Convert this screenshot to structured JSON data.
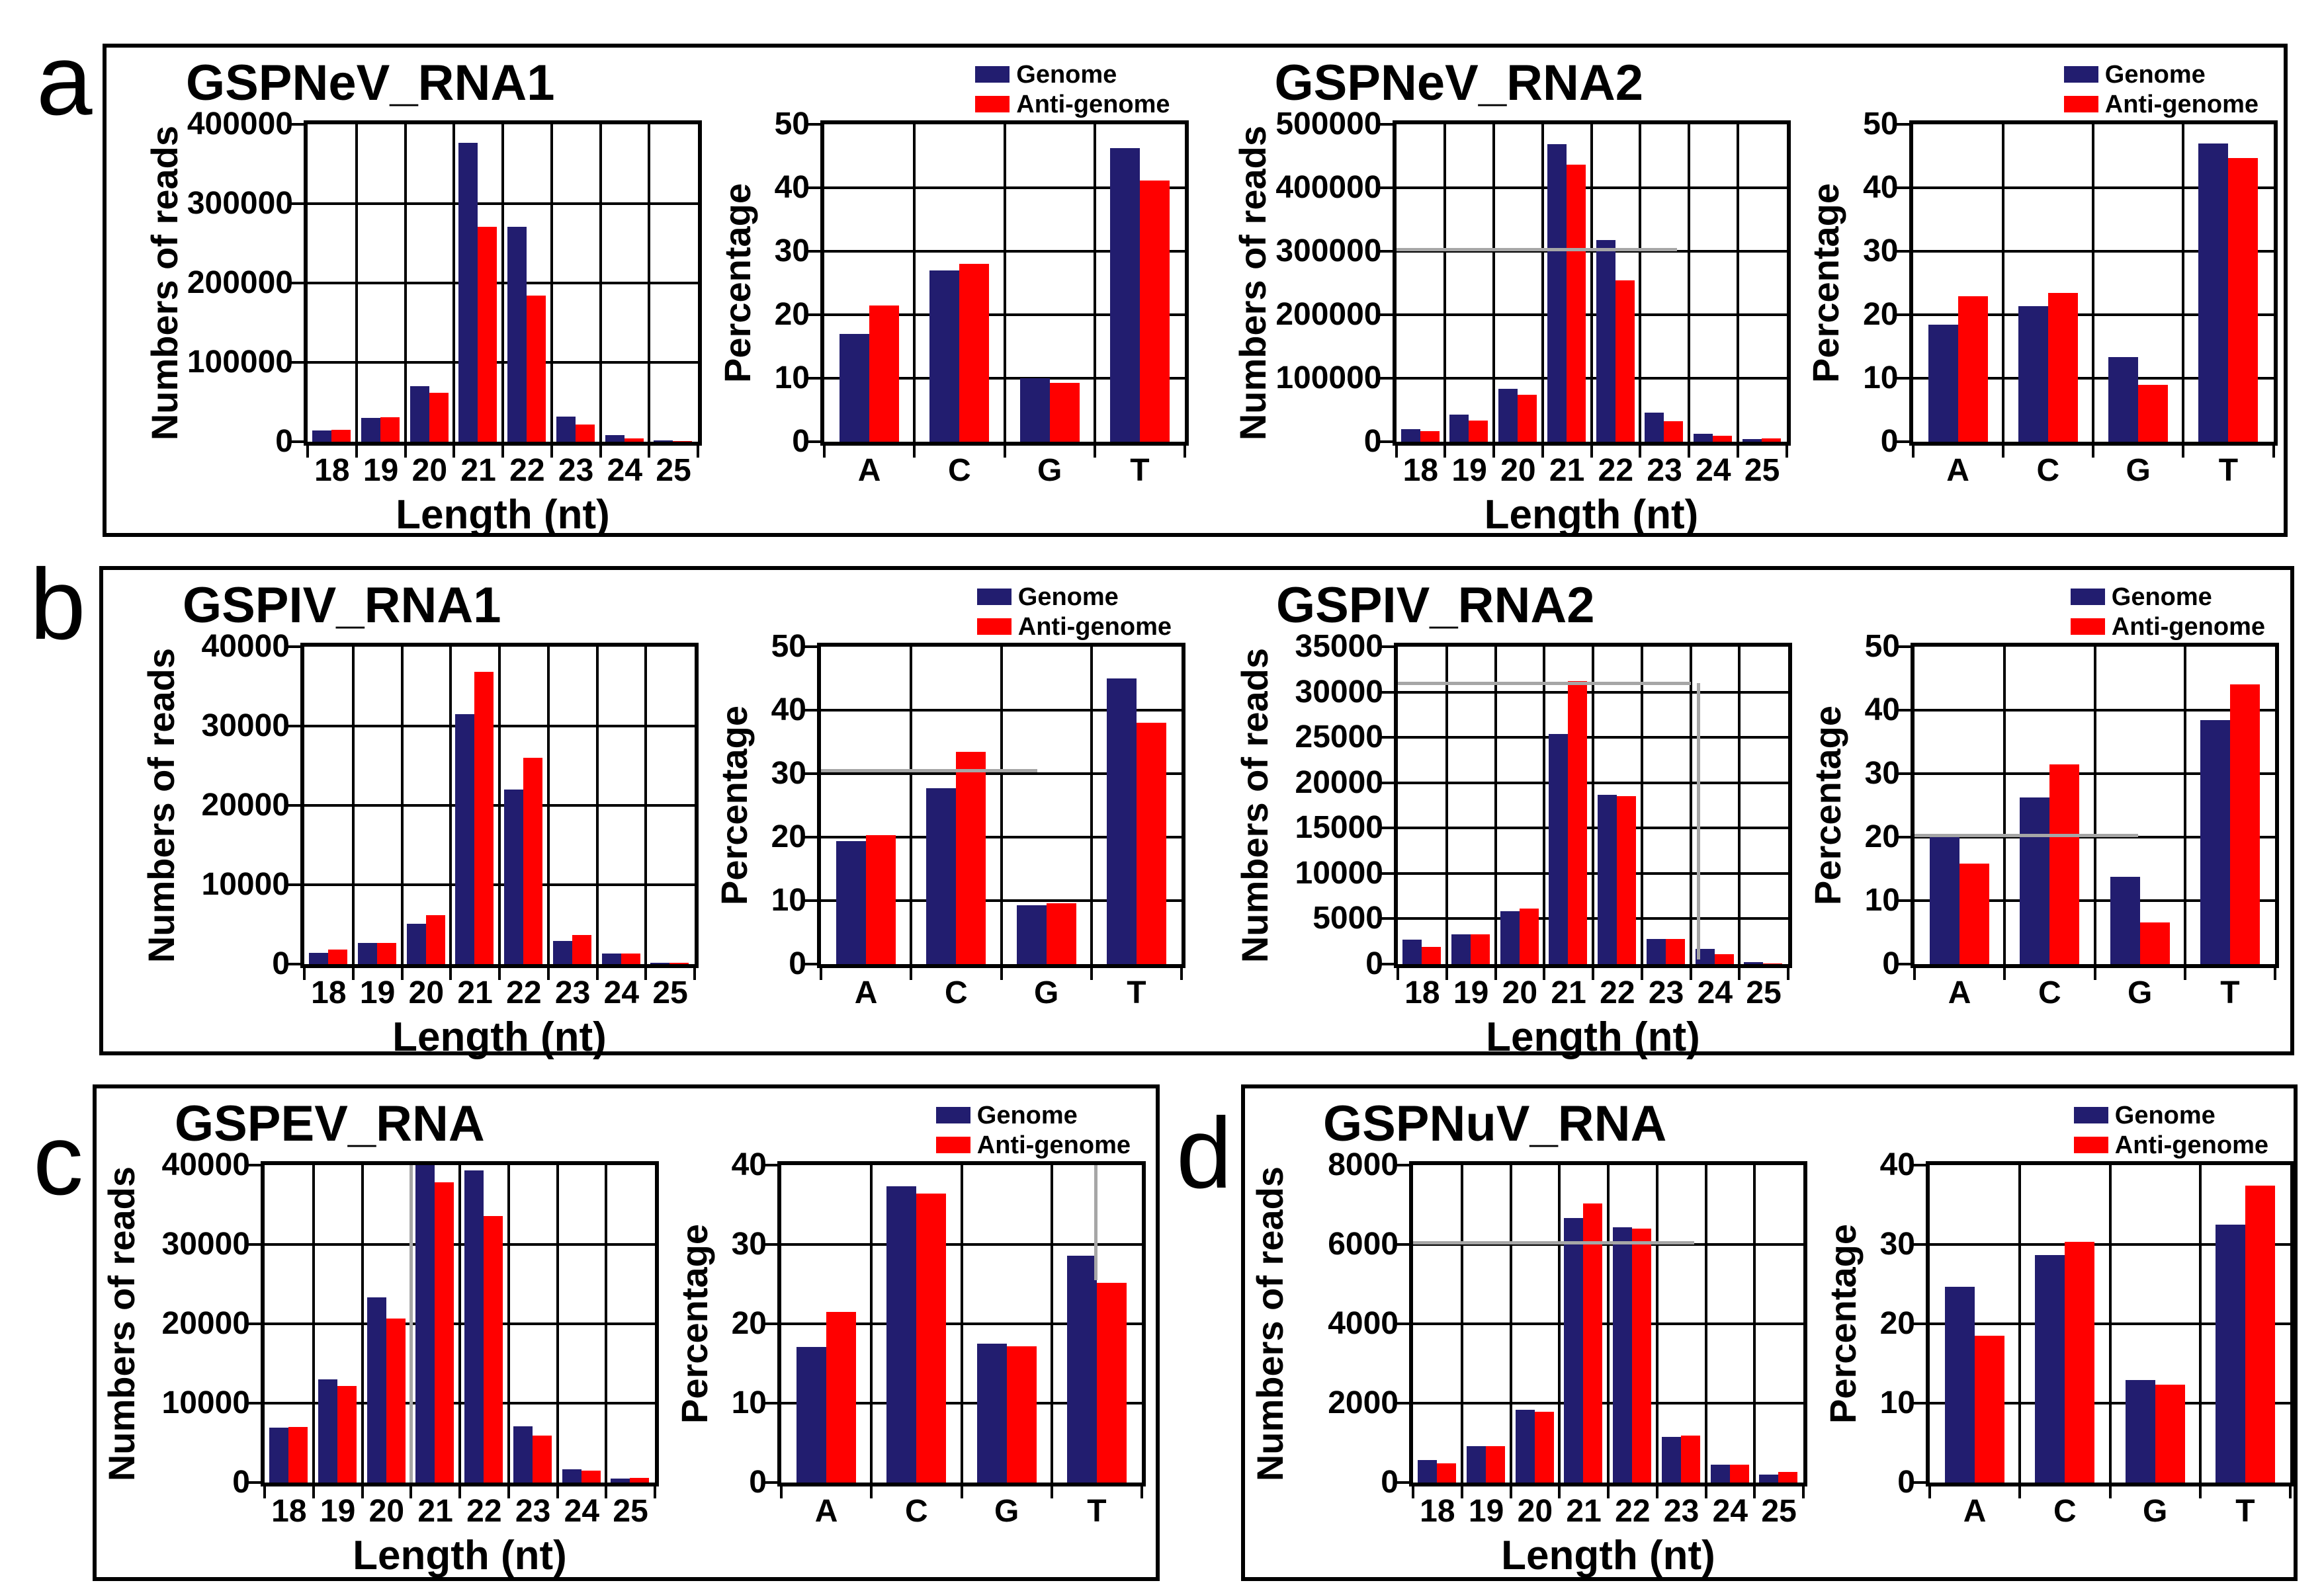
{
  "figure_letters": [
    "a",
    "b",
    "c",
    "d"
  ],
  "legend": {
    "genome": "Genome",
    "antigenome": "Anti-genome"
  },
  "colors": {
    "genome": "#221d6f",
    "antigenome": "#ff0000",
    "artifact": "#a6a6a6",
    "text": "#000000"
  },
  "groups": [
    {
      "panel": "a",
      "title": "GSPNeV_RNA1",
      "reads_chart": 0,
      "pct_chart": 1
    },
    {
      "panel": "a",
      "title": "GSPNeV_RNA2",
      "reads_chart": 2,
      "pct_chart": 3
    },
    {
      "panel": "b",
      "title": "GSPIV_RNA1",
      "reads_chart": 4,
      "pct_chart": 5
    },
    {
      "panel": "b",
      "title": "GSPIV_RNA2",
      "reads_chart": 6,
      "pct_chart": 7
    },
    {
      "panel": "c",
      "title": "GSPEV_RNA",
      "reads_chart": 8,
      "pct_chart": 9
    },
    {
      "panel": "d",
      "title": "GSPNuV_RNA",
      "reads_chart": 10,
      "pct_chart": 11
    }
  ],
  "chart_data": [
    {
      "id": "gspnev_rna1_reads",
      "type": "bar",
      "panel": "a",
      "group": "GSPNeV_RNA1",
      "xlabel": "Length (nt)",
      "ylabel": "Numbers of reads",
      "categories": [
        "18",
        "19",
        "20",
        "21",
        "22",
        "23",
        "24",
        "25"
      ],
      "ylim": [
        0,
        400000
      ],
      "yticks": [
        0,
        100000,
        200000,
        300000,
        400000
      ],
      "grid": true,
      "series": [
        {
          "name": "Genome",
          "values": [
            14000,
            30000,
            70000,
            377000,
            271000,
            32000,
            8000,
            1500
          ]
        },
        {
          "name": "Anti-genome",
          "values": [
            15000,
            31000,
            62000,
            271000,
            184000,
            22000,
            4500,
            1000
          ]
        }
      ]
    },
    {
      "id": "gspnev_rna1_pct",
      "type": "bar",
      "panel": "a",
      "group": "GSPNeV_RNA1",
      "xlabel": "",
      "ylabel": "Percentage",
      "categories": [
        "A",
        "C",
        "G",
        "T"
      ],
      "ylim": [
        0,
        50
      ],
      "yticks": [
        0,
        10,
        20,
        30,
        40,
        50
      ],
      "grid": true,
      "series": [
        {
          "name": "Genome",
          "values": [
            17,
            27,
            10,
            46.3
          ]
        },
        {
          "name": "Anti-genome",
          "values": [
            21.5,
            28,
            9.3,
            41.1
          ]
        }
      ]
    },
    {
      "id": "gspnev_rna2_reads",
      "type": "bar",
      "panel": "a",
      "group": "GSPNeV_RNA2",
      "xlabel": "Length (nt)",
      "ylabel": "Numbers of reads",
      "categories": [
        "18",
        "19",
        "20",
        "21",
        "22",
        "23",
        "24",
        "25"
      ],
      "ylim": [
        0,
        500000
      ],
      "yticks": [
        0,
        100000,
        200000,
        300000,
        400000,
        500000
      ],
      "grid": true,
      "series": [
        {
          "name": "Genome",
          "values": [
            20000,
            43000,
            83000,
            469000,
            318000,
            46000,
            12000,
            4000
          ]
        },
        {
          "name": "Anti-genome",
          "values": [
            17000,
            33000,
            74000,
            436000,
            254000,
            32000,
            9000,
            5000
          ]
        }
      ],
      "artifacts": {
        "h": [
          {
            "y": 303000,
            "x0": 0,
            "x1": 0.72
          }
        ]
      }
    },
    {
      "id": "gspnev_rna2_pct",
      "type": "bar",
      "panel": "a",
      "group": "GSPNeV_RNA2",
      "xlabel": "",
      "ylabel": "Percentage",
      "categories": [
        "A",
        "C",
        "G",
        "T"
      ],
      "ylim": [
        0,
        50
      ],
      "yticks": [
        0,
        10,
        20,
        30,
        40,
        50
      ],
      "grid": true,
      "series": [
        {
          "name": "Genome",
          "values": [
            18.4,
            21.4,
            13.3,
            47
          ]
        },
        {
          "name": "Anti-genome",
          "values": [
            22.9,
            23.4,
            9,
            44.7
          ]
        }
      ]
    },
    {
      "id": "gspiv_rna1_reads",
      "type": "bar",
      "panel": "b",
      "group": "GSPIV_RNA1",
      "xlabel": "Length (nt)",
      "ylabel": "Numbers of reads",
      "categories": [
        "18",
        "19",
        "20",
        "21",
        "22",
        "23",
        "24",
        "25"
      ],
      "ylim": [
        0,
        40000
      ],
      "yticks": [
        0,
        10000,
        20000,
        30000,
        40000
      ],
      "grid": true,
      "series": [
        {
          "name": "Genome",
          "values": [
            1400,
            2700,
            5100,
            31500,
            22000,
            2900,
            1300,
            200
          ]
        },
        {
          "name": "Anti-genome",
          "values": [
            1800,
            2700,
            6200,
            36800,
            26000,
            3700,
            1300,
            150
          ]
        }
      ]
    },
    {
      "id": "gspiv_rna1_pct",
      "type": "bar",
      "panel": "b",
      "group": "GSPIV_RNA1",
      "xlabel": "",
      "ylabel": "Percentage",
      "categories": [
        "A",
        "C",
        "G",
        "T"
      ],
      "ylim": [
        0,
        50
      ],
      "yticks": [
        0,
        10,
        20,
        30,
        40,
        50
      ],
      "grid": true,
      "series": [
        {
          "name": "Genome",
          "values": [
            19.4,
            27.7,
            9.3,
            45
          ]
        },
        {
          "name": "Anti-genome",
          "values": [
            20.3,
            33.4,
            9.6,
            38
          ]
        }
      ],
      "artifacts": {
        "h": [
          {
            "y": 30.5,
            "x0": 0,
            "x1": 0.6
          }
        ]
      }
    },
    {
      "id": "gspiv_rna2_reads",
      "type": "bar",
      "panel": "b",
      "group": "GSPIV_RNA2",
      "xlabel": "Length (nt)",
      "ylabel": "Numbers of reads",
      "categories": [
        "18",
        "19",
        "20",
        "21",
        "22",
        "23",
        "24",
        "25"
      ],
      "ylim": [
        0,
        35000
      ],
      "yticks": [
        0,
        5000,
        10000,
        15000,
        20000,
        25000,
        30000,
        35000
      ],
      "grid": true,
      "series": [
        {
          "name": "Genome",
          "values": [
            2700,
            3300,
            5800,
            25400,
            18700,
            2800,
            1700,
            250
          ]
        },
        {
          "name": "Anti-genome",
          "values": [
            1900,
            3300,
            6100,
            31200,
            18500,
            2800,
            1100,
            100
          ]
        }
      ],
      "artifacts": {
        "h": [
          {
            "y": 31000,
            "x0": 0,
            "x1": 0.75
          }
        ],
        "v": [
          {
            "x": 0.77,
            "y0": 500,
            "y1": 31000
          }
        ]
      }
    },
    {
      "id": "gspiv_rna2_pct",
      "type": "bar",
      "panel": "b",
      "group": "GSPIV_RNA2",
      "xlabel": "",
      "ylabel": "Percentage",
      "categories": [
        "A",
        "C",
        "G",
        "T"
      ],
      "ylim": [
        0,
        50
      ],
      "yticks": [
        0,
        10,
        20,
        30,
        40,
        50
      ],
      "grid": true,
      "series": [
        {
          "name": "Genome",
          "values": [
            20,
            26.2,
            13.8,
            38.4
          ]
        },
        {
          "name": "Anti-genome",
          "values": [
            15.8,
            31.5,
            6.6,
            44.1
          ]
        }
      ],
      "artifacts": {
        "h": [
          {
            "y": 20.3,
            "x0": 0,
            "x1": 0.62
          }
        ]
      }
    },
    {
      "id": "gspev_rna_reads",
      "type": "bar",
      "panel": "c",
      "group": "GSPEV_RNA",
      "xlabel": "Length (nt)",
      "ylabel": "Numbers of reads",
      "categories": [
        "18",
        "19",
        "20",
        "21",
        "22",
        "23",
        "24",
        "25"
      ],
      "ylim": [
        0,
        40000
      ],
      "yticks": [
        0,
        10000,
        20000,
        30000,
        40000
      ],
      "grid": true,
      "series": [
        {
          "name": "Genome",
          "values": [
            6900,
            13000,
            23300,
            40000,
            39300,
            7100,
            1700,
            500
          ]
        },
        {
          "name": "Anti-genome",
          "values": [
            7000,
            12200,
            20700,
            37800,
            33600,
            5900,
            1500,
            600
          ]
        }
      ],
      "artifacts": {
        "v": [
          {
            "x": 0.375,
            "y0": 0,
            "y1": 40000
          }
        ]
      }
    },
    {
      "id": "gspev_rna_pct",
      "type": "bar",
      "panel": "c",
      "group": "GSPEV_RNA",
      "xlabel": "",
      "ylabel": "Percentage",
      "categories": [
        "A",
        "C",
        "G",
        "T"
      ],
      "ylim": [
        0,
        40
      ],
      "yticks": [
        0,
        10,
        20,
        30,
        40
      ],
      "grid": true,
      "series": [
        {
          "name": "Genome",
          "values": [
            17.1,
            37.3,
            17.5,
            28.6
          ]
        },
        {
          "name": "Anti-genome",
          "values": [
            21.5,
            36.4,
            17.2,
            25.2
          ]
        }
      ],
      "artifacts": {
        "v": [
          {
            "x": 0.872,
            "y0": 25.5,
            "y1": 40
          }
        ]
      }
    },
    {
      "id": "gspnuv_rna_reads",
      "type": "bar",
      "panel": "d",
      "group": "GSPNuV_RNA",
      "xlabel": "Length (nt)",
      "ylabel": "Numbers of reads",
      "categories": [
        "18",
        "19",
        "20",
        "21",
        "22",
        "23",
        "24",
        "25"
      ],
      "ylim": [
        0,
        8000
      ],
      "yticks": [
        0,
        2000,
        4000,
        6000,
        8000
      ],
      "grid": true,
      "series": [
        {
          "name": "Genome",
          "values": [
            560,
            920,
            1830,
            6660,
            6440,
            1150,
            450,
            200
          ]
        },
        {
          "name": "Anti-genome",
          "values": [
            490,
            920,
            1790,
            7040,
            6400,
            1190,
            450,
            260
          ]
        }
      ],
      "artifacts": {
        "h": [
          {
            "y": 6050,
            "x0": 0,
            "x1": 0.72
          }
        ]
      }
    },
    {
      "id": "gspnuv_rna_pct",
      "type": "bar",
      "panel": "d",
      "group": "GSPNuV_RNA",
      "xlabel": "",
      "ylabel": "Percentage",
      "categories": [
        "A",
        "C",
        "G",
        "T"
      ],
      "ylim": [
        0,
        40
      ],
      "yticks": [
        0,
        10,
        20,
        30,
        40
      ],
      "grid": true,
      "series": [
        {
          "name": "Genome",
          "values": [
            24.7,
            28.7,
            12.9,
            32.5
          ]
        },
        {
          "name": "Anti-genome",
          "values": [
            18.5,
            30.3,
            12.3,
            37.4
          ]
        }
      ]
    }
  ]
}
